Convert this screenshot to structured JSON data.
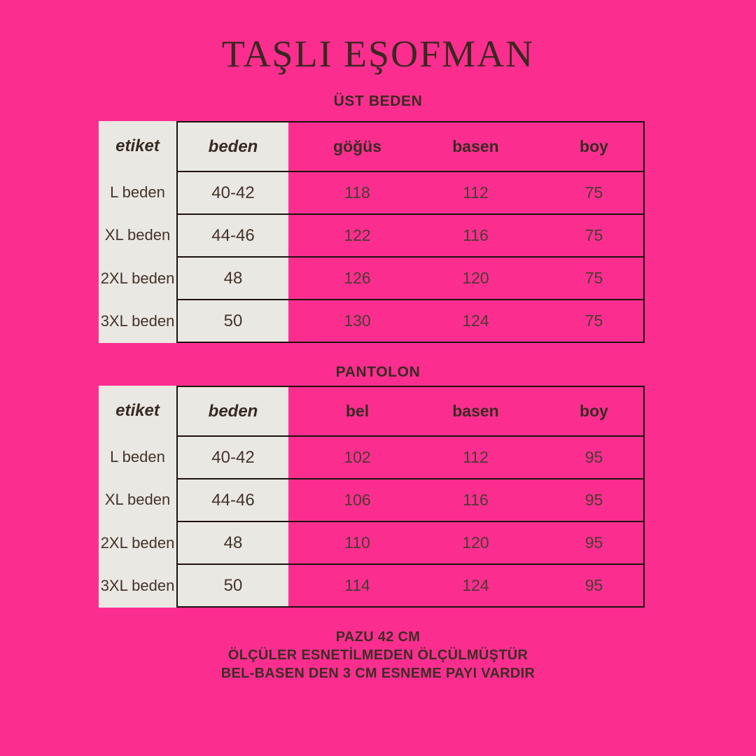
{
  "title": "TAŞLI EŞOFMAN",
  "sections": [
    {
      "heading": "ÜST BEDEN",
      "columns": {
        "etiket": "etiket",
        "beden": "beden",
        "measures": [
          "göğüs",
          "basen",
          "boy"
        ]
      },
      "rows": [
        {
          "etiket": "L beden",
          "beden": "40-42",
          "values": [
            "118",
            "112",
            "75"
          ]
        },
        {
          "etiket": "XL beden",
          "beden": "44-46",
          "values": [
            "122",
            "116",
            "75"
          ]
        },
        {
          "etiket": "2XL beden",
          "beden": "48",
          "values": [
            "126",
            "120",
            "75"
          ]
        },
        {
          "etiket": "3XL beden",
          "beden": "50",
          "values": [
            "130",
            "124",
            "75"
          ]
        }
      ]
    },
    {
      "heading": "PANTOLON",
      "columns": {
        "etiket": "etiket",
        "beden": "beden",
        "measures": [
          "bel",
          "basen",
          "boy"
        ]
      },
      "rows": [
        {
          "etiket": "L beden",
          "beden": "40-42",
          "values": [
            "102",
            "112",
            "95"
          ]
        },
        {
          "etiket": "XL beden",
          "beden": "44-46",
          "values": [
            "106",
            "116",
            "95"
          ]
        },
        {
          "etiket": "2XL beden",
          "beden": "48",
          "values": [
            "110",
            "120",
            "95"
          ]
        },
        {
          "etiket": "3XL beden",
          "beden": "50",
          "values": [
            "114",
            "124",
            "95"
          ]
        }
      ]
    }
  ],
  "footer": {
    "lines": [
      "PAZU 42 CM",
      "ÖLÇÜLER ESNETİLMEDEN ÖLÇÜLMÜŞTÜR",
      "BEL-BASEN DEN 3 CM ESNEME PAYI VARDIR"
    ]
  },
  "colors": {
    "background": "#fb2e90",
    "panel_cream": "#eae8e2",
    "border_dark": "#1c130e",
    "title_text": "#3a281f",
    "table_text": "#43332b"
  }
}
